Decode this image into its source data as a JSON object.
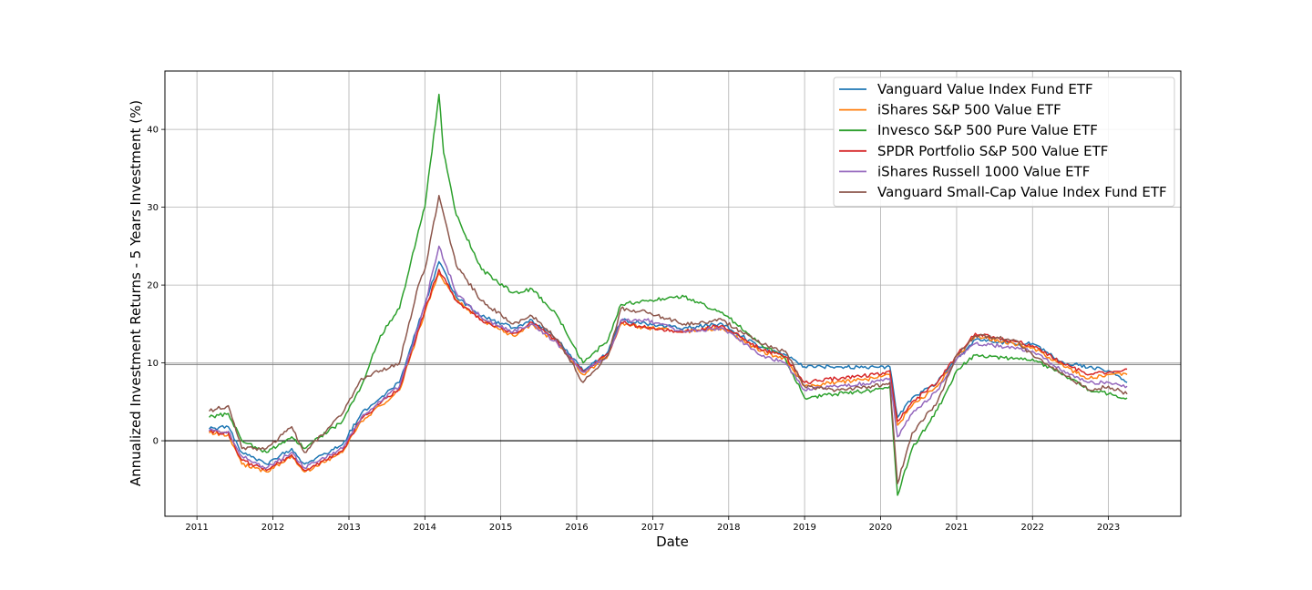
{
  "chart_data": {
    "type": "line",
    "title": "",
    "xlabel": "Date",
    "ylabel": "Annualized Investment Returns - 5 Years Investment (%)",
    "xlim": [
      "2010-07-31",
      "2023-12-15"
    ],
    "ylim": [
      -9.7,
      47.5
    ],
    "grid": true,
    "legend_position": "top-right",
    "x_ticks": [
      "2011",
      "2012",
      "2013",
      "2014",
      "2015",
      "2016",
      "2017",
      "2018",
      "2019",
      "2020",
      "2021",
      "2022",
      "2023"
    ],
    "y_ticks": [
      0,
      10,
      20,
      30,
      40
    ],
    "reference_lines": [
      {
        "y": 9.8,
        "color": "#808080"
      },
      {
        "y": 0,
        "color": "#000000"
      }
    ],
    "series": [
      {
        "name": "Vanguard Value Index Fund ETF",
        "color": "#1f77b4",
        "points": [
          [
            "2011-03-01",
            1.5
          ],
          [
            "2011-06-01",
            1.8
          ],
          [
            "2011-08-05",
            -1.5
          ],
          [
            "2011-12-01",
            -3.0
          ],
          [
            "2012-04-01",
            -1.0
          ],
          [
            "2012-06-01",
            -3.0
          ],
          [
            "2012-12-01",
            -0.5
          ],
          [
            "2013-03-01",
            3.5
          ],
          [
            "2013-06-01",
            5.5
          ],
          [
            "2013-09-01",
            7.5
          ],
          [
            "2014-01-01",
            17.5
          ],
          [
            "2014-03-10",
            23.0
          ],
          [
            "2014-06-01",
            18.5
          ],
          [
            "2014-10-01",
            16.0
          ],
          [
            "2015-03-01",
            14.5
          ],
          [
            "2015-06-01",
            15.5
          ],
          [
            "2015-10-01",
            13.0
          ],
          [
            "2016-02-01",
            9.0
          ],
          [
            "2016-06-01",
            11.5
          ],
          [
            "2016-08-01",
            15.5
          ],
          [
            "2016-12-01",
            15.0
          ],
          [
            "2017-06-01",
            14.5
          ],
          [
            "2017-12-01",
            15.0
          ],
          [
            "2018-06-01",
            12.0
          ],
          [
            "2018-10-01",
            11.0
          ],
          [
            "2019-01-01",
            9.5
          ],
          [
            "2019-06-01",
            9.5
          ],
          [
            "2019-12-01",
            9.5
          ],
          [
            "2020-02-15",
            9.5
          ],
          [
            "2020-03-23",
            3.0
          ],
          [
            "2020-06-01",
            5.5
          ],
          [
            "2020-10-01",
            7.5
          ],
          [
            "2021-01-01",
            10.5
          ],
          [
            "2021-04-01",
            13.0
          ],
          [
            "2021-10-01",
            12.5
          ],
          [
            "2022-01-01",
            12.5
          ],
          [
            "2022-06-01",
            10.0
          ],
          [
            "2022-10-01",
            9.5
          ],
          [
            "2023-01-01",
            9.0
          ],
          [
            "2023-04-01",
            7.5
          ]
        ]
      },
      {
        "name": "iShares S&P 500 Value ETF",
        "color": "#ff7f0e",
        "points": [
          [
            "2011-03-01",
            1.0
          ],
          [
            "2011-06-01",
            0.8
          ],
          [
            "2011-08-05",
            -3.0
          ],
          [
            "2011-12-01",
            -4.0
          ],
          [
            "2012-04-01",
            -2.0
          ],
          [
            "2012-06-01",
            -4.0
          ],
          [
            "2012-12-01",
            -1.5
          ],
          [
            "2013-03-01",
            2.5
          ],
          [
            "2013-06-01",
            4.5
          ],
          [
            "2013-09-01",
            6.5
          ],
          [
            "2014-01-01",
            16.5
          ],
          [
            "2014-03-10",
            21.5
          ],
          [
            "2014-06-01",
            18.0
          ],
          [
            "2014-10-01",
            15.5
          ],
          [
            "2015-03-01",
            13.5
          ],
          [
            "2015-06-01",
            15.0
          ],
          [
            "2015-10-01",
            12.5
          ],
          [
            "2016-02-01",
            8.5
          ],
          [
            "2016-06-01",
            11.0
          ],
          [
            "2016-08-01",
            15.0
          ],
          [
            "2016-12-01",
            14.5
          ],
          [
            "2017-06-01",
            14.0
          ],
          [
            "2017-12-01",
            14.5
          ],
          [
            "2018-06-01",
            11.5
          ],
          [
            "2018-10-01",
            10.5
          ],
          [
            "2019-01-01",
            7.0
          ],
          [
            "2019-06-01",
            7.5
          ],
          [
            "2019-12-01",
            8.0
          ],
          [
            "2020-02-15",
            8.5
          ],
          [
            "2020-03-23",
            2.0
          ],
          [
            "2020-06-01",
            4.5
          ],
          [
            "2020-10-01",
            7.0
          ],
          [
            "2021-01-01",
            10.5
          ],
          [
            "2021-04-01",
            13.5
          ],
          [
            "2021-10-01",
            12.5
          ],
          [
            "2022-01-01",
            12.0
          ],
          [
            "2022-06-01",
            9.5
          ],
          [
            "2022-10-01",
            8.0
          ],
          [
            "2023-01-01",
            8.5
          ],
          [
            "2023-04-01",
            8.5
          ]
        ]
      },
      {
        "name": "Invesco S&P 500 Pure Value ETF",
        "color": "#2ca02c",
        "points": [
          [
            "2011-03-01",
            3.0
          ],
          [
            "2011-06-01",
            3.5
          ],
          [
            "2011-08-05",
            0.0
          ],
          [
            "2011-12-01",
            -1.5
          ],
          [
            "2012-04-01",
            0.5
          ],
          [
            "2012-06-01",
            -1.0
          ],
          [
            "2012-12-01",
            2.5
          ],
          [
            "2013-03-01",
            7.0
          ],
          [
            "2013-06-01",
            13.5
          ],
          [
            "2013-09-01",
            17.0
          ],
          [
            "2013-12-01",
            27.0
          ],
          [
            "2014-01-01",
            30.0
          ],
          [
            "2014-03-10",
            44.5
          ],
          [
            "2014-04-01",
            37.0
          ],
          [
            "2014-06-01",
            29.0
          ],
          [
            "2014-10-01",
            22.0
          ],
          [
            "2015-03-01",
            19.0
          ],
          [
            "2015-06-01",
            19.5
          ],
          [
            "2015-10-01",
            16.0
          ],
          [
            "2016-02-01",
            10.0
          ],
          [
            "2016-06-01",
            13.0
          ],
          [
            "2016-08-01",
            17.5
          ],
          [
            "2016-12-01",
            18.0
          ],
          [
            "2017-06-01",
            18.5
          ],
          [
            "2017-12-01",
            16.5
          ],
          [
            "2018-06-01",
            12.5
          ],
          [
            "2018-10-01",
            10.5
          ],
          [
            "2019-01-01",
            5.5
          ],
          [
            "2019-06-01",
            6.0
          ],
          [
            "2019-12-01",
            6.5
          ],
          [
            "2020-02-15",
            7.0
          ],
          [
            "2020-03-23",
            -7.0
          ],
          [
            "2020-06-01",
            -1.0
          ],
          [
            "2020-10-01",
            4.0
          ],
          [
            "2021-01-01",
            9.0
          ],
          [
            "2021-04-01",
            11.0
          ],
          [
            "2021-10-01",
            10.5
          ],
          [
            "2022-01-01",
            10.5
          ],
          [
            "2022-06-01",
            8.5
          ],
          [
            "2022-10-01",
            6.5
          ],
          [
            "2023-01-01",
            6.0
          ],
          [
            "2023-04-01",
            5.5
          ]
        ]
      },
      {
        "name": "SPDR Portfolio S&P 500 Value ETF",
        "color": "#d62728",
        "points": [
          [
            "2011-03-01",
            1.2
          ],
          [
            "2011-06-01",
            1.0
          ],
          [
            "2011-08-05",
            -2.5
          ],
          [
            "2011-12-01",
            -3.8
          ],
          [
            "2012-04-01",
            -1.8
          ],
          [
            "2012-06-01",
            -3.8
          ],
          [
            "2012-12-01",
            -1.3
          ],
          [
            "2013-03-01",
            2.8
          ],
          [
            "2013-06-01",
            4.8
          ],
          [
            "2013-09-01",
            6.8
          ],
          [
            "2014-01-01",
            16.8
          ],
          [
            "2014-03-10",
            22.0
          ],
          [
            "2014-06-01",
            18.0
          ],
          [
            "2014-10-01",
            15.5
          ],
          [
            "2015-03-01",
            13.8
          ],
          [
            "2015-06-01",
            15.2
          ],
          [
            "2015-10-01",
            12.8
          ],
          [
            "2016-02-01",
            8.8
          ],
          [
            "2016-06-01",
            11.2
          ],
          [
            "2016-08-01",
            15.2
          ],
          [
            "2016-12-01",
            14.5
          ],
          [
            "2017-06-01",
            14.0
          ],
          [
            "2017-12-01",
            14.8
          ],
          [
            "2018-06-01",
            11.8
          ],
          [
            "2018-10-01",
            10.8
          ],
          [
            "2019-01-01",
            7.5
          ],
          [
            "2019-06-01",
            8.0
          ],
          [
            "2019-12-01",
            8.5
          ],
          [
            "2020-02-15",
            9.0
          ],
          [
            "2020-03-23",
            2.5
          ],
          [
            "2020-06-01",
            5.0
          ],
          [
            "2020-10-01",
            7.5
          ],
          [
            "2021-01-01",
            11.0
          ],
          [
            "2021-04-01",
            13.8
          ],
          [
            "2021-10-01",
            12.8
          ],
          [
            "2022-01-01",
            12.2
          ],
          [
            "2022-06-01",
            9.8
          ],
          [
            "2022-10-01",
            8.5
          ],
          [
            "2023-01-01",
            8.8
          ],
          [
            "2023-04-01",
            9.2
          ]
        ]
      },
      {
        "name": "iShares Russell 1000 Value ETF",
        "color": "#9467bd",
        "points": [
          [
            "2011-03-01",
            1.3
          ],
          [
            "2011-06-01",
            1.2
          ],
          [
            "2011-08-05",
            -2.0
          ],
          [
            "2011-12-01",
            -3.5
          ],
          [
            "2012-04-01",
            -1.5
          ],
          [
            "2012-06-01",
            -3.5
          ],
          [
            "2012-12-01",
            -1.0
          ],
          [
            "2013-03-01",
            3.0
          ],
          [
            "2013-06-01",
            5.0
          ],
          [
            "2013-09-01",
            7.0
          ],
          [
            "2014-01-01",
            17.5
          ],
          [
            "2014-03-10",
            25.0
          ],
          [
            "2014-06-01",
            19.0
          ],
          [
            "2014-10-01",
            15.8
          ],
          [
            "2015-03-01",
            14.0
          ],
          [
            "2015-06-01",
            15.0
          ],
          [
            "2015-10-01",
            12.5
          ],
          [
            "2016-02-01",
            8.8
          ],
          [
            "2016-06-01",
            11.0
          ],
          [
            "2016-08-01",
            15.5
          ],
          [
            "2016-12-01",
            15.5
          ],
          [
            "2017-06-01",
            14.0
          ],
          [
            "2017-12-01",
            14.5
          ],
          [
            "2018-06-01",
            11.0
          ],
          [
            "2018-10-01",
            10.0
          ],
          [
            "2019-01-01",
            6.5
          ],
          [
            "2019-06-01",
            7.0
          ],
          [
            "2019-12-01",
            7.5
          ],
          [
            "2020-02-15",
            8.0
          ],
          [
            "2020-03-23",
            0.5
          ],
          [
            "2020-06-01",
            3.5
          ],
          [
            "2020-10-01",
            6.5
          ],
          [
            "2021-01-01",
            10.5
          ],
          [
            "2021-04-01",
            12.5
          ],
          [
            "2021-10-01",
            12.0
          ],
          [
            "2022-01-01",
            11.5
          ],
          [
            "2022-06-01",
            9.0
          ],
          [
            "2022-10-01",
            7.5
          ],
          [
            "2023-01-01",
            7.5
          ],
          [
            "2023-04-01",
            7.0
          ]
        ]
      },
      {
        "name": "Vanguard Small-Cap Value Index Fund ETF",
        "color": "#8c564b",
        "points": [
          [
            "2011-03-01",
            3.8
          ],
          [
            "2011-06-01",
            4.5
          ],
          [
            "2011-08-05",
            -1.0
          ],
          [
            "2011-12-01",
            -1.0
          ],
          [
            "2012-04-01",
            1.8
          ],
          [
            "2012-06-01",
            -1.5
          ],
          [
            "2012-12-01",
            3.5
          ],
          [
            "2013-03-01",
            8.0
          ],
          [
            "2013-06-01",
            9.0
          ],
          [
            "2013-09-01",
            10.0
          ],
          [
            "2013-12-01",
            20.0
          ],
          [
            "2014-01-01",
            22.0
          ],
          [
            "2014-03-10",
            31.5
          ],
          [
            "2014-06-01",
            22.5
          ],
          [
            "2014-10-01",
            18.0
          ],
          [
            "2015-03-01",
            15.0
          ],
          [
            "2015-06-01",
            16.0
          ],
          [
            "2015-10-01",
            13.0
          ],
          [
            "2016-02-01",
            7.5
          ],
          [
            "2016-06-01",
            11.0
          ],
          [
            "2016-08-01",
            17.0
          ],
          [
            "2016-12-01",
            16.5
          ],
          [
            "2017-06-01",
            15.0
          ],
          [
            "2017-12-01",
            15.5
          ],
          [
            "2018-06-01",
            12.5
          ],
          [
            "2018-10-01",
            11.5
          ],
          [
            "2019-01-01",
            7.0
          ],
          [
            "2019-06-01",
            6.5
          ],
          [
            "2019-12-01",
            7.0
          ],
          [
            "2020-02-15",
            7.5
          ],
          [
            "2020-03-23",
            -5.5
          ],
          [
            "2020-06-01",
            1.0
          ],
          [
            "2020-10-01",
            5.0
          ],
          [
            "2021-01-01",
            11.0
          ],
          [
            "2021-04-01",
            13.5
          ],
          [
            "2021-10-01",
            13.0
          ],
          [
            "2022-01-01",
            11.0
          ],
          [
            "2022-06-01",
            8.5
          ],
          [
            "2022-10-01",
            6.5
          ],
          [
            "2023-01-01",
            7.0
          ],
          [
            "2023-04-01",
            6.0
          ]
        ]
      }
    ]
  }
}
